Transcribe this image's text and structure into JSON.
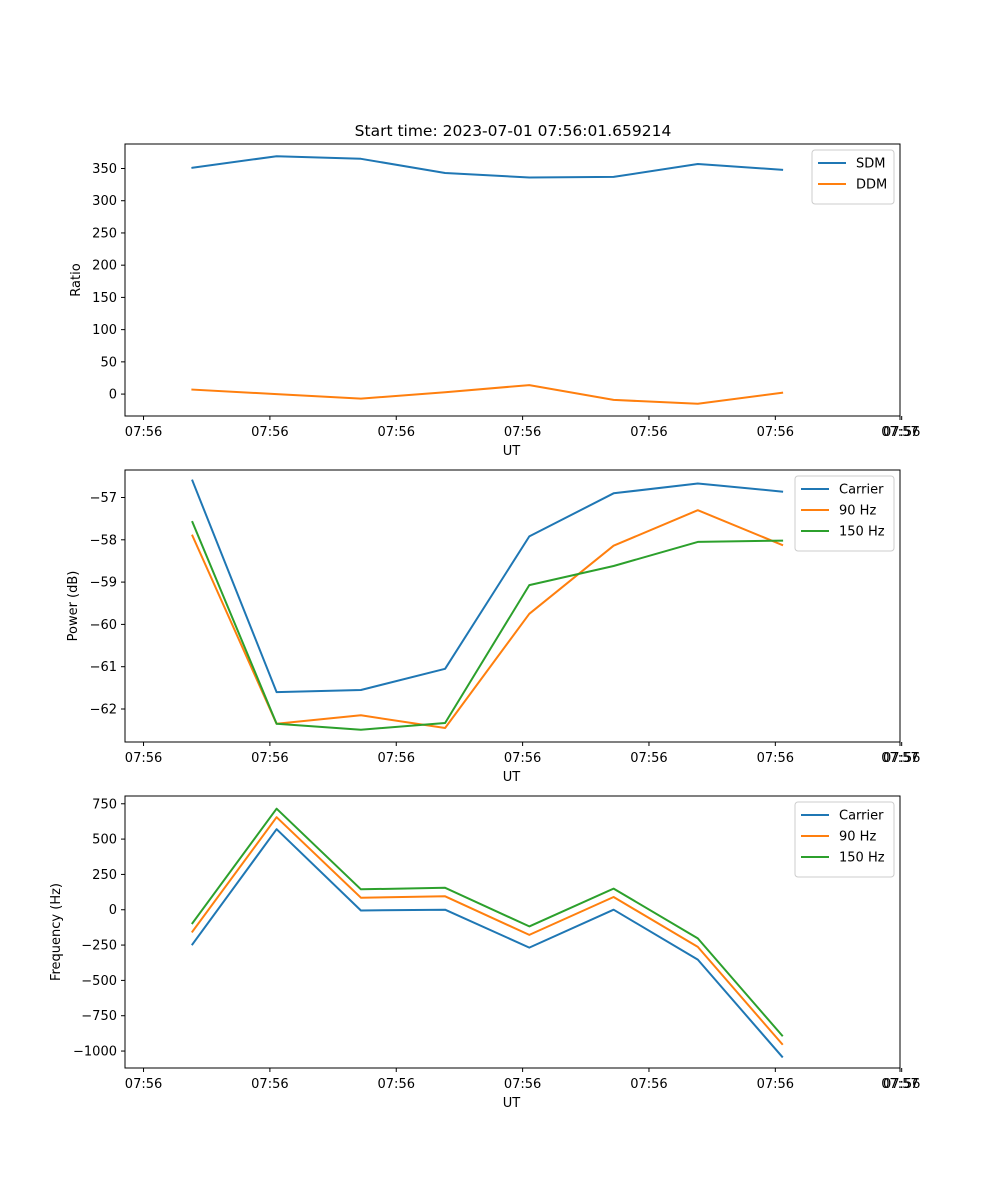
{
  "title": "Start time: 2023-07-01 07:56:01.659214",
  "chart_data": [
    {
      "type": "line",
      "title": "Start time: 2023-07-01 07:56:01.659214",
      "xlabel": "UT",
      "ylabel": "Ratio",
      "x_tick_labels": [
        "07:56",
        "07:56",
        "07:56",
        "07:56",
        "07:56",
        "07:56",
        "07:56"
      ],
      "x_tick_labels_extra": [
        "07:57"
      ],
      "x": [
        1,
        2,
        3,
        4,
        5,
        6,
        7,
        8
      ],
      "xlim": [
        0.2,
        9.4
      ],
      "ylim": [
        -34,
        388
      ],
      "yticks": [
        0,
        50,
        100,
        150,
        200,
        250,
        300,
        350
      ],
      "ytick_labels": [
        "0",
        "50",
        "100",
        "150",
        "200",
        "250",
        "300",
        "350"
      ],
      "legend": "top-right",
      "series": [
        {
          "name": "SDM",
          "color": "#1f77b4",
          "values": [
            351,
            369,
            365,
            343,
            336,
            337,
            357,
            348
          ]
        },
        {
          "name": "DDM",
          "color": "#ff7f0e",
          "values": [
            7,
            0,
            -7,
            3,
            14,
            -9,
            -15,
            2
          ]
        }
      ]
    },
    {
      "type": "line",
      "xlabel": "UT",
      "ylabel": "Power (dB)",
      "x_tick_labels": [
        "07:56",
        "07:56",
        "07:56",
        "07:56",
        "07:56",
        "07:56",
        "07:56"
      ],
      "x_tick_labels_extra": [
        "07:57"
      ],
      "x": [
        1,
        2,
        3,
        4,
        5,
        6,
        7,
        8
      ],
      "xlim": [
        0.2,
        9.4
      ],
      "ylim": [
        -62.78,
        -56.35
      ],
      "yticks": [
        -62,
        -61,
        -60,
        -59,
        -58,
        -57
      ],
      "ytick_labels": [
        "−62",
        "−61",
        "−60",
        "−59",
        "−58",
        "−57"
      ],
      "legend": "top-right",
      "series": [
        {
          "name": "Carrier",
          "color": "#1f77b4",
          "values": [
            -56.6,
            -61.6,
            -61.55,
            -61.05,
            -57.92,
            -56.9,
            -56.67,
            -56.86
          ]
        },
        {
          "name": "90 Hz",
          "color": "#ff7f0e",
          "values": [
            -57.9,
            -62.35,
            -62.15,
            -62.45,
            -59.75,
            -58.14,
            -57.3,
            -58.12
          ]
        },
        {
          "name": "150 Hz",
          "color": "#2ca02c",
          "values": [
            -57.58,
            -62.35,
            -62.49,
            -62.33,
            -59.07,
            -58.62,
            -58.05,
            -58.02
          ]
        }
      ]
    },
    {
      "type": "line",
      "xlabel": "UT",
      "ylabel": "Frequency (Hz)",
      "x_tick_labels": [
        "07:56",
        "07:56",
        "07:56",
        "07:56",
        "07:56",
        "07:56",
        "07:56"
      ],
      "x_tick_labels_extra": [
        "07:57"
      ],
      "x": [
        1,
        2,
        3,
        4,
        5,
        6,
        7,
        8
      ],
      "xlim": [
        0.2,
        9.4
      ],
      "ylim": [
        -1120,
        805
      ],
      "yticks": [
        -1000,
        -750,
        -500,
        -250,
        0,
        250,
        500,
        750
      ],
      "ytick_labels": [
        "−1000",
        "−750",
        "−500",
        "−250",
        "0",
        "250",
        "500",
        "750"
      ],
      "legend": "top-right",
      "series": [
        {
          "name": "Carrier",
          "color": "#1f77b4",
          "values": [
            -245,
            570,
            -5,
            0,
            -268,
            0,
            -353,
            -1040
          ]
        },
        {
          "name": "90 Hz",
          "color": "#ff7f0e",
          "values": [
            -155,
            655,
            85,
            95,
            -178,
            90,
            -263,
            -950
          ]
        },
        {
          "name": "150 Hz",
          "color": "#2ca02c",
          "values": [
            -95,
            715,
            145,
            155,
            -118,
            150,
            -203,
            -890
          ]
        }
      ]
    }
  ]
}
